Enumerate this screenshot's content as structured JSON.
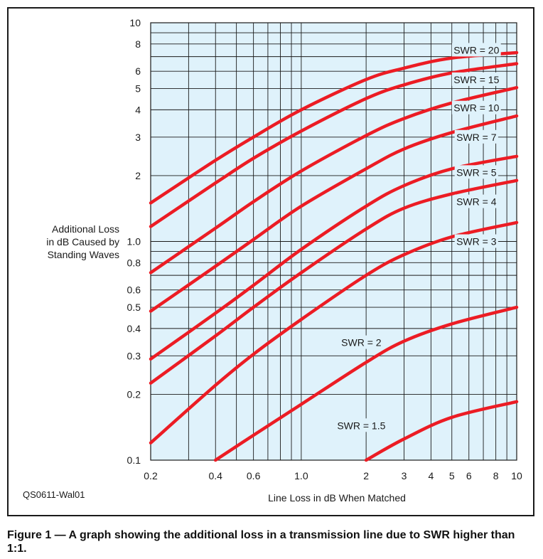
{
  "figure_id": "QS0611-Wal01",
  "caption": "Figure 1 — A graph showing the additional loss in a transmission line due to SWR higher than 1:1.",
  "colors": {
    "plot_bg": "#dff2fb",
    "curve": "#ec1c24",
    "grid": "#1a1a1a"
  },
  "chart_data": {
    "type": "line",
    "xscale": "log",
    "yscale": "log",
    "xlim": [
      0.2,
      10
    ],
    "ylim": [
      0.1,
      10
    ],
    "grid": true,
    "xlabel": "Line Loss in dB When Matched",
    "ylabel": [
      "Additional Loss",
      "in dB Caused by",
      "Standing Waves"
    ],
    "x_tick_labels": [
      {
        "v": 0.2,
        "label": "0.2"
      },
      {
        "v": 0.4,
        "label": "0.4"
      },
      {
        "v": 0.6,
        "label": "0.6"
      },
      {
        "v": 1,
        "label": "1.0"
      },
      {
        "v": 2,
        "label": "2"
      },
      {
        "v": 3,
        "label": "3"
      },
      {
        "v": 4,
        "label": "4"
      },
      {
        "v": 5,
        "label": "5"
      },
      {
        "v": 6,
        "label": "6"
      },
      {
        "v": 8,
        "label": "8"
      },
      {
        "v": 10,
        "label": "10"
      }
    ],
    "y_tick_labels": [
      {
        "v": 0.1,
        "label": "0.1"
      },
      {
        "v": 0.2,
        "label": "0.2"
      },
      {
        "v": 0.3,
        "label": "0.3"
      },
      {
        "v": 0.4,
        "label": "0.4"
      },
      {
        "v": 0.5,
        "label": "0.5"
      },
      {
        "v": 0.6,
        "label": "0.6"
      },
      {
        "v": 0.8,
        "label": "0.8"
      },
      {
        "v": 1,
        "label": "1.0"
      },
      {
        "v": 2,
        "label": "2"
      },
      {
        "v": 3,
        "label": "3"
      },
      {
        "v": 4,
        "label": "4"
      },
      {
        "v": 5,
        "label": "5"
      },
      {
        "v": 6,
        "label": "6"
      },
      {
        "v": 8,
        "label": "8"
      },
      {
        "v": 10,
        "label": "10"
      }
    ],
    "x_grid": [
      0.2,
      0.3,
      0.4,
      0.5,
      0.6,
      0.7,
      0.8,
      0.9,
      1,
      2,
      3,
      4,
      5,
      6,
      7,
      8,
      9,
      10
    ],
    "y_grid": [
      0.1,
      0.2,
      0.3,
      0.4,
      0.5,
      0.6,
      0.7,
      0.8,
      0.9,
      1,
      2,
      3,
      4,
      5,
      6,
      7,
      8,
      9,
      10
    ],
    "series": [
      {
        "name": "SWR = 20",
        "label_x": 6.5,
        "label_y": 7.5,
        "points": [
          [
            0.2,
            1.5
          ],
          [
            0.4,
            2.35
          ],
          [
            0.6,
            3.0
          ],
          [
            1,
            4.0
          ],
          [
            2,
            5.5
          ],
          [
            3,
            6.2
          ],
          [
            5,
            6.9
          ],
          [
            10,
            7.3
          ]
        ]
      },
      {
        "name": "SWR = 15",
        "label_x": 6.5,
        "label_y": 5.5,
        "points": [
          [
            0.2,
            1.17
          ],
          [
            0.4,
            1.85
          ],
          [
            0.6,
            2.4
          ],
          [
            1,
            3.2
          ],
          [
            2,
            4.5
          ],
          [
            3,
            5.2
          ],
          [
            5,
            5.9
          ],
          [
            10,
            6.5
          ]
        ]
      },
      {
        "name": "SWR = 10",
        "label_x": 6.5,
        "label_y": 4.08,
        "points": [
          [
            0.2,
            0.72
          ],
          [
            0.4,
            1.15
          ],
          [
            0.6,
            1.52
          ],
          [
            1,
            2.1
          ],
          [
            2,
            3.05
          ],
          [
            3,
            3.65
          ],
          [
            5,
            4.3
          ],
          [
            10,
            5.05
          ]
        ]
      },
      {
        "name": "SWR = 7",
        "label_x": 6.5,
        "label_y": 3.0,
        "points": [
          [
            0.2,
            0.48
          ],
          [
            0.4,
            0.77
          ],
          [
            0.6,
            1.02
          ],
          [
            1,
            1.45
          ],
          [
            2,
            2.15
          ],
          [
            3,
            2.65
          ],
          [
            5,
            3.15
          ],
          [
            10,
            3.75
          ]
        ]
      },
      {
        "name": "SWR = 5",
        "label_x": 6.5,
        "label_y": 2.07,
        "points": [
          [
            0.2,
            0.29
          ],
          [
            0.4,
            0.47
          ],
          [
            0.6,
            0.63
          ],
          [
            1,
            0.92
          ],
          [
            2,
            1.45
          ],
          [
            3,
            1.8
          ],
          [
            5,
            2.15
          ],
          [
            10,
            2.45
          ]
        ]
      },
      {
        "name": "SWR = 4",
        "label_x": 6.5,
        "label_y": 1.52,
        "points": [
          [
            0.2,
            0.225
          ],
          [
            0.4,
            0.37
          ],
          [
            0.6,
            0.5
          ],
          [
            1,
            0.72
          ],
          [
            2,
            1.14
          ],
          [
            3,
            1.42
          ],
          [
            5,
            1.65
          ],
          [
            10,
            1.9
          ]
        ]
      },
      {
        "name": "SWR = 3",
        "label_x": 6.5,
        "label_y": 1.0,
        "points": [
          [
            0.2,
            0.12
          ],
          [
            0.4,
            0.22
          ],
          [
            0.6,
            0.305
          ],
          [
            1,
            0.44
          ],
          [
            2,
            0.7
          ],
          [
            3,
            0.87
          ],
          [
            5,
            1.05
          ],
          [
            10,
            1.22
          ]
        ]
      },
      {
        "name": "SWR = 2",
        "label_x": 1.9,
        "label_y": 0.345,
        "points": [
          [
            0.4,
            0.1
          ],
          [
            0.6,
            0.13
          ],
          [
            1,
            0.18
          ],
          [
            2,
            0.28
          ],
          [
            3,
            0.35
          ],
          [
            5,
            0.42
          ],
          [
            10,
            0.5
          ]
        ]
      },
      {
        "name": "SWR = 1.5",
        "label_x": 1.9,
        "label_y": 0.144,
        "points": [
          [
            2,
            0.1
          ],
          [
            3,
            0.125
          ],
          [
            5,
            0.157
          ],
          [
            10,
            0.185
          ]
        ]
      }
    ]
  }
}
